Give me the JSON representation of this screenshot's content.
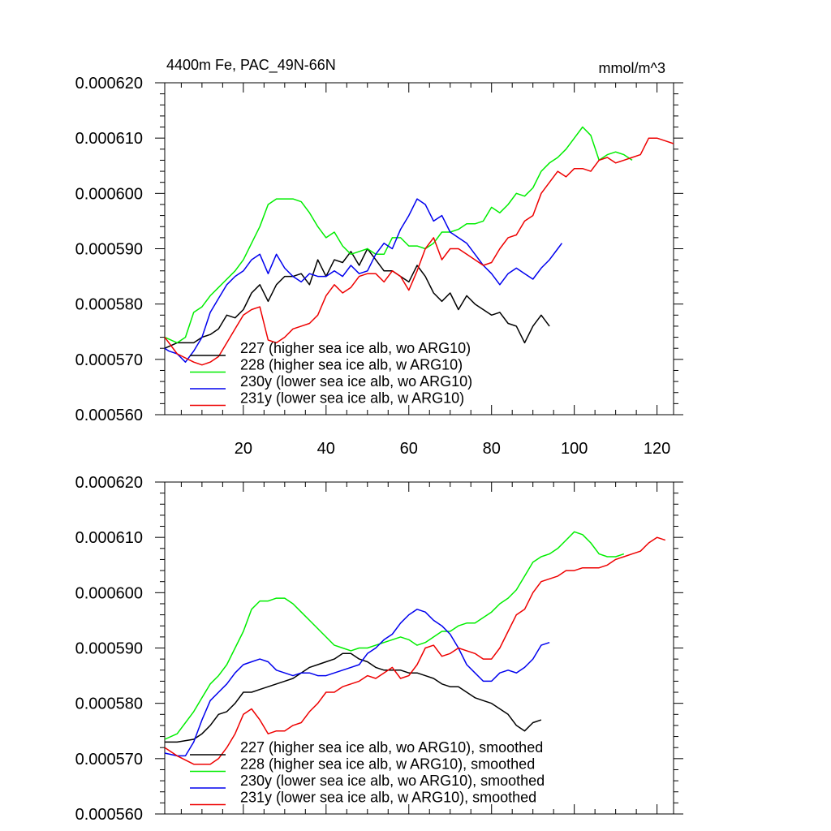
{
  "chart_data": [
    {
      "type": "line",
      "title": "4400m Fe, PAC_49N-66N",
      "units": "mmol/m^3",
      "xlim": [
        1,
        124
      ],
      "ylim": [
        0.00056,
        0.00062
      ],
      "xticks": [
        20,
        40,
        60,
        80,
        100,
        120
      ],
      "xtick_labels": [
        "20",
        "40",
        "60",
        "80",
        "100",
        "120"
      ],
      "yticks": [
        0.00056,
        0.00057,
        0.00058,
        0.00059,
        0.0006,
        0.00061,
        0.00062
      ],
      "ytick_labels": [
        "0.000560",
        "0.000570",
        "0.000580",
        "0.000590",
        "0.000600",
        "0.000610",
        "0.000620"
      ],
      "legend_position": "bottom-left",
      "series": [
        {
          "name": "227 (higher sea ice alb, wo ARG10)",
          "color": "#000000",
          "x": [
            1,
            4,
            8,
            10,
            12,
            14,
            16,
            18,
            20,
            22,
            24,
            26,
            28,
            30,
            32,
            34,
            36,
            38,
            40,
            42,
            44,
            46,
            48,
            50,
            52,
            54,
            56,
            58,
            60,
            62,
            64,
            66,
            68,
            70,
            72,
            74,
            76,
            78,
            80,
            82,
            84,
            86,
            88,
            90,
            92,
            94
          ],
          "y": [
            0.000572,
            0.000573,
            0.000573,
            0.000574,
            0.0005745,
            0.0005755,
            0.000578,
            0.0005775,
            0.000579,
            0.000582,
            0.0005835,
            0.0005805,
            0.0005835,
            0.000585,
            0.000585,
            0.0005855,
            0.0005835,
            0.000588,
            0.000585,
            0.000588,
            0.0005875,
            0.0005895,
            0.000587,
            0.00059,
            0.000588,
            0.000586,
            0.000586,
            0.000585,
            0.000584,
            0.000587,
            0.000585,
            0.000582,
            0.0005805,
            0.000582,
            0.000579,
            0.0005815,
            0.00058,
            0.000579,
            0.000578,
            0.0005785,
            0.0005765,
            0.000576,
            0.000573,
            0.000576,
            0.000578,
            0.000576
          ]
        },
        {
          "name": "228 (higher sea ice alb, w ARG10)",
          "color": "#00ee00",
          "x": [
            1,
            4,
            6,
            8,
            10,
            12,
            14,
            16,
            18,
            20,
            22,
            24,
            26,
            28,
            30,
            32,
            34,
            36,
            38,
            40,
            42,
            44,
            46,
            48,
            50,
            52,
            54,
            56,
            58,
            60,
            62,
            64,
            66,
            68,
            70,
            72,
            74,
            76,
            78,
            80,
            82,
            84,
            86,
            88,
            90,
            92,
            94,
            96,
            98,
            100,
            102,
            104,
            106,
            108,
            110,
            112,
            114
          ],
          "y": [
            0.000574,
            0.000573,
            0.000574,
            0.0005785,
            0.0005795,
            0.0005815,
            0.000583,
            0.0005845,
            0.000586,
            0.000588,
            0.000591,
            0.000594,
            0.000598,
            0.000599,
            0.000599,
            0.000599,
            0.0005985,
            0.0005965,
            0.000594,
            0.000592,
            0.000593,
            0.0005905,
            0.000589,
            0.0005895,
            0.00059,
            0.000589,
            0.000589,
            0.000592,
            0.000592,
            0.0005905,
            0.0005905,
            0.00059,
            0.000591,
            0.000593,
            0.000593,
            0.0005935,
            0.0005945,
            0.0005945,
            0.000595,
            0.0005975,
            0.0005965,
            0.000598,
            0.0006,
            0.0005995,
            0.000601,
            0.000604,
            0.0006055,
            0.0006065,
            0.000608,
            0.00061,
            0.000612,
            0.0006105,
            0.000606,
            0.000607,
            0.0006075,
            0.000607,
            0.000606
          ]
        },
        {
          "name": "230y (lower sea ice alb, wo ARG10)",
          "color": "#0000ee",
          "x": [
            1,
            2,
            4,
            6,
            8,
            10,
            12,
            14,
            16,
            18,
            20,
            22,
            24,
            26,
            28,
            30,
            32,
            34,
            36,
            38,
            40,
            42,
            44,
            46,
            48,
            50,
            52,
            54,
            56,
            58,
            60,
            62,
            64,
            66,
            68,
            70,
            72,
            74,
            76,
            78,
            80,
            82,
            84,
            86,
            88,
            90,
            92,
            94,
            96,
            97
          ],
          "y": [
            0.000572,
            0.0005715,
            0.000571,
            0.0005695,
            0.0005715,
            0.000574,
            0.0005785,
            0.000581,
            0.0005835,
            0.000585,
            0.000586,
            0.000588,
            0.000589,
            0.0005855,
            0.000589,
            0.0005865,
            0.000585,
            0.000584,
            0.0005855,
            0.000585,
            0.000585,
            0.000586,
            0.000585,
            0.000587,
            0.0005855,
            0.000586,
            0.000589,
            0.000591,
            0.00059,
            0.0005935,
            0.000596,
            0.000599,
            0.000598,
            0.000595,
            0.000596,
            0.000593,
            0.000592,
            0.000591,
            0.000589,
            0.000587,
            0.0005855,
            0.0005835,
            0.0005855,
            0.0005865,
            0.0005855,
            0.0005845,
            0.0005865,
            0.000588,
            0.00059,
            0.000591
          ]
        },
        {
          "name": "231y (lower sea ice alb, w ARG10)",
          "color": "#ee0000",
          "x": [
            1,
            4,
            8,
            10,
            12,
            14,
            16,
            18,
            20,
            22,
            24,
            26,
            28,
            30,
            32,
            34,
            36,
            38,
            40,
            42,
            44,
            46,
            48,
            50,
            52,
            54,
            56,
            58,
            60,
            62,
            64,
            66,
            68,
            70,
            72,
            74,
            76,
            78,
            80,
            82,
            84,
            86,
            88,
            90,
            92,
            94,
            96,
            98,
            100,
            102,
            104,
            106,
            108,
            110,
            112,
            114,
            116,
            118,
            120,
            122,
            124
          ],
          "y": [
            0.000574,
            0.000571,
            0.0005695,
            0.000569,
            0.0005695,
            0.0005705,
            0.000573,
            0.0005755,
            0.000578,
            0.000579,
            0.0005795,
            0.0005735,
            0.000573,
            0.000574,
            0.0005755,
            0.000576,
            0.0005765,
            0.000578,
            0.0005815,
            0.0005835,
            0.000582,
            0.000583,
            0.000585,
            0.0005855,
            0.0005855,
            0.000584,
            0.000586,
            0.000585,
            0.0005825,
            0.000586,
            0.00059,
            0.000592,
            0.000588,
            0.00059,
            0.00059,
            0.000589,
            0.000588,
            0.000587,
            0.0005875,
            0.00059,
            0.000592,
            0.0005925,
            0.000595,
            0.000596,
            0.0006,
            0.000602,
            0.000604,
            0.000603,
            0.0006045,
            0.0006045,
            0.000604,
            0.000606,
            0.0006065,
            0.0006055,
            0.000606,
            0.0006065,
            0.000607,
            0.00061,
            0.00061,
            0.0006095,
            0.000609
          ]
        }
      ]
    },
    {
      "type": "line",
      "title": "",
      "units": "",
      "xlim": [
        1,
        124
      ],
      "ylim": [
        0.00056,
        0.00062
      ],
      "xticks": [
        20,
        40,
        60,
        80,
        100,
        120
      ],
      "xtick_labels": [],
      "yticks": [
        0.00056,
        0.00057,
        0.00058,
        0.00059,
        0.0006,
        0.00061,
        0.00062
      ],
      "ytick_labels": [
        "0.000560",
        "0.000570",
        "0.000580",
        "0.000590",
        "0.000600",
        "0.000610",
        "0.000620"
      ],
      "legend_position": "bottom-left",
      "series": [
        {
          "name": "227 (higher sea ice alb, wo ARG10), smoothed",
          "color": "#000000",
          "x": [
            1,
            4,
            8,
            10,
            12,
            14,
            16,
            18,
            20,
            22,
            24,
            26,
            28,
            30,
            32,
            34,
            36,
            38,
            40,
            42,
            44,
            46,
            48,
            50,
            52,
            54,
            56,
            58,
            60,
            62,
            64,
            66,
            68,
            70,
            72,
            74,
            76,
            78,
            80,
            82,
            84,
            86,
            88,
            90,
            92
          ],
          "y": [
            0.000573,
            0.000573,
            0.0005735,
            0.0005745,
            0.000576,
            0.000578,
            0.0005785,
            0.00058,
            0.000582,
            0.000582,
            0.0005825,
            0.000583,
            0.0005835,
            0.000584,
            0.0005845,
            0.0005855,
            0.0005865,
            0.000587,
            0.0005875,
            0.000588,
            0.000589,
            0.000589,
            0.000588,
            0.0005875,
            0.0005865,
            0.000586,
            0.000586,
            0.000586,
            0.0005855,
            0.0005855,
            0.000585,
            0.0005845,
            0.0005835,
            0.000583,
            0.000583,
            0.000582,
            0.000581,
            0.0005805,
            0.00058,
            0.000579,
            0.000578,
            0.000576,
            0.000575,
            0.0005765,
            0.000577
          ]
        },
        {
          "name": "228 (higher sea ice alb, w ARG10), smoothed",
          "color": "#00ee00",
          "x": [
            1,
            4,
            8,
            10,
            12,
            14,
            16,
            18,
            20,
            22,
            24,
            26,
            28,
            30,
            32,
            34,
            36,
            38,
            40,
            42,
            44,
            46,
            48,
            50,
            52,
            54,
            56,
            58,
            60,
            62,
            64,
            66,
            68,
            70,
            72,
            74,
            76,
            78,
            80,
            82,
            84,
            86,
            88,
            90,
            92,
            94,
            96,
            98,
            100,
            102,
            104,
            106,
            108,
            110,
            112
          ],
          "y": [
            0.0005735,
            0.0005745,
            0.0005785,
            0.000581,
            0.0005835,
            0.000585,
            0.000587,
            0.00059,
            0.000593,
            0.000597,
            0.0005985,
            0.0005985,
            0.000599,
            0.000599,
            0.000598,
            0.0005965,
            0.000595,
            0.0005935,
            0.000592,
            0.0005905,
            0.00059,
            0.0005895,
            0.00059,
            0.00059,
            0.0005905,
            0.000591,
            0.0005915,
            0.000592,
            0.0005915,
            0.0005905,
            0.000591,
            0.000592,
            0.000593,
            0.000593,
            0.000594,
            0.0005945,
            0.0005945,
            0.0005955,
            0.0005965,
            0.000598,
            0.000599,
            0.0006005,
            0.000603,
            0.0006055,
            0.0006065,
            0.000607,
            0.000608,
            0.0006095,
            0.000611,
            0.0006105,
            0.000609,
            0.000607,
            0.0006065,
            0.0006065,
            0.000607
          ]
        },
        {
          "name": "230y (lower sea ice alb, wo ARG10), smoothed",
          "color": "#0000ee",
          "x": [
            1,
            4,
            6,
            8,
            10,
            12,
            14,
            16,
            18,
            20,
            22,
            24,
            26,
            28,
            30,
            32,
            34,
            36,
            38,
            40,
            42,
            44,
            46,
            48,
            50,
            52,
            54,
            56,
            58,
            60,
            62,
            64,
            66,
            68,
            70,
            72,
            74,
            76,
            78,
            80,
            82,
            84,
            86,
            88,
            90,
            92,
            94
          ],
          "y": [
            0.000571,
            0.0005705,
            0.0005705,
            0.000573,
            0.000577,
            0.0005805,
            0.000582,
            0.0005835,
            0.0005855,
            0.000587,
            0.0005875,
            0.000588,
            0.0005875,
            0.000586,
            0.0005855,
            0.000585,
            0.0005855,
            0.0005855,
            0.000585,
            0.000585,
            0.0005855,
            0.000586,
            0.0005865,
            0.000587,
            0.000589,
            0.00059,
            0.0005915,
            0.0005925,
            0.0005945,
            0.000596,
            0.000597,
            0.0005965,
            0.000595,
            0.000594,
            0.0005925,
            0.00059,
            0.000587,
            0.0005855,
            0.000584,
            0.000584,
            0.0005855,
            0.000586,
            0.0005855,
            0.0005865,
            0.000588,
            0.0005905,
            0.000591
          ]
        },
        {
          "name": "231y (lower sea ice alb, w ARG10), smoothed",
          "color": "#ee0000",
          "x": [
            1,
            4,
            8,
            10,
            12,
            14,
            16,
            18,
            20,
            22,
            24,
            26,
            28,
            30,
            32,
            34,
            36,
            38,
            40,
            42,
            44,
            46,
            48,
            50,
            52,
            54,
            56,
            58,
            60,
            62,
            64,
            66,
            68,
            70,
            72,
            74,
            76,
            78,
            80,
            82,
            84,
            86,
            88,
            90,
            92,
            94,
            96,
            98,
            100,
            102,
            104,
            106,
            108,
            110,
            112,
            114,
            116,
            118,
            120,
            122
          ],
          "y": [
            0.000572,
            0.0005705,
            0.000569,
            0.000569,
            0.000569,
            0.00057,
            0.000572,
            0.0005745,
            0.000578,
            0.000579,
            0.000577,
            0.0005745,
            0.000575,
            0.000575,
            0.000576,
            0.0005765,
            0.0005785,
            0.00058,
            0.000582,
            0.000582,
            0.000583,
            0.0005835,
            0.000584,
            0.000585,
            0.0005845,
            0.0005855,
            0.0005865,
            0.0005845,
            0.000585,
            0.000587,
            0.00059,
            0.0005905,
            0.0005885,
            0.000589,
            0.00059,
            0.0005895,
            0.000589,
            0.000588,
            0.000588,
            0.00059,
            0.000593,
            0.000596,
            0.000597,
            0.0006,
            0.000602,
            0.0006025,
            0.000603,
            0.000604,
            0.000604,
            0.0006045,
            0.0006045,
            0.0006045,
            0.000605,
            0.000606,
            0.0006065,
            0.000607,
            0.0006075,
            0.000609,
            0.00061,
            0.0006095
          ]
        }
      ]
    }
  ]
}
